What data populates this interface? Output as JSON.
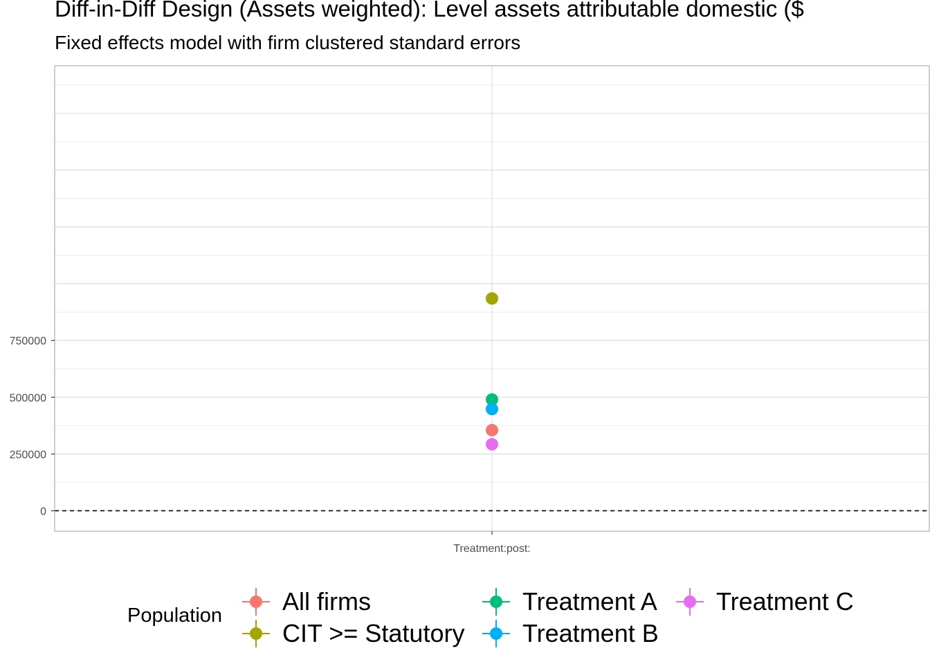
{
  "title": "Diff-in-Diff Design (Assets weighted): Level assets attributable domestic  ($",
  "subtitle": "Fixed effects model with firm clustered standard errors",
  "chart_data": {
    "type": "scatter",
    "title": "Diff-in-Diff Design (Assets weighted): Level assets attributable domestic  ($",
    "subtitle": "Fixed effects model with firm clustered standard errors",
    "xlabel": "",
    "ylabel": "",
    "categories": [
      "Treatment:post:"
    ],
    "ylim": [
      -90000,
      1960000
    ],
    "yticks": [
      0,
      250000,
      500000,
      750000
    ],
    "ytick_labels": [
      "0",
      "250000",
      "500000",
      "750000"
    ],
    "reference_line": {
      "y": 0,
      "style": "dashed"
    },
    "grid": true,
    "legend": {
      "title": "Population",
      "position": "bottom"
    },
    "series": [
      {
        "name": "All firms",
        "color": "#F8766D",
        "values": [
          355000
        ]
      },
      {
        "name": "CIT >= Statutory",
        "color": "#A3A500",
        "values": [
          935000
        ]
      },
      {
        "name": "Treatment A",
        "color": "#00BF7D",
        "values": [
          490000
        ]
      },
      {
        "name": "Treatment B",
        "color": "#00B0F6",
        "values": [
          448000
        ]
      },
      {
        "name": "Treatment C",
        "color": "#E76BF3",
        "values": [
          293000
        ]
      }
    ]
  }
}
